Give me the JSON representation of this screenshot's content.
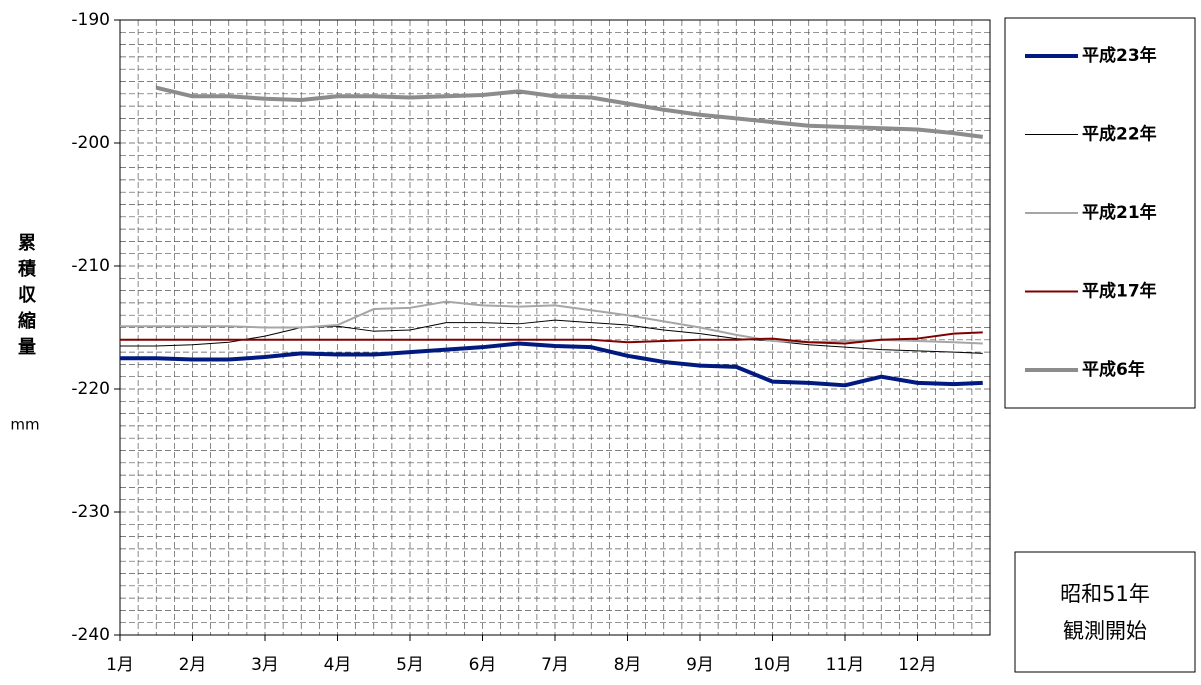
{
  "chart_data": {
    "type": "line",
    "y_label": "累積収縮量",
    "y_unit": "mm",
    "x": [
      1,
      1.5,
      2,
      2.5,
      3,
      3.5,
      4,
      4.5,
      5,
      5.5,
      6,
      6.5,
      7,
      7.5,
      8,
      8.5,
      9,
      9.5,
      10,
      10.5,
      11,
      11.5,
      12,
      12.5,
      12.9
    ],
    "xlim": [
      1,
      13
    ],
    "xticks": [
      {
        "value": 1,
        "label": "1月"
      },
      {
        "value": 2,
        "label": "2月"
      },
      {
        "value": 3,
        "label": "3月"
      },
      {
        "value": 4,
        "label": "4月"
      },
      {
        "value": 5,
        "label": "5月"
      },
      {
        "value": 6,
        "label": "6月"
      },
      {
        "value": 7,
        "label": "7月"
      },
      {
        "value": 8,
        "label": "8月"
      },
      {
        "value": 9,
        "label": "9月"
      },
      {
        "value": 10,
        "label": "10月"
      },
      {
        "value": 11,
        "label": "11月"
      },
      {
        "value": 12,
        "label": "12月"
      }
    ],
    "ylim": [
      -240,
      -190
    ],
    "yticks": [
      -240,
      -230,
      -220,
      -210,
      -200,
      -190
    ],
    "grid": true,
    "series": [
      {
        "name": "平成23年",
        "color": "#001a80",
        "width": 4,
        "values": [
          -217.5,
          -217.5,
          -217.6,
          -217.6,
          -217.4,
          -217.1,
          -217.2,
          -217.2,
          -217.0,
          -216.8,
          -216.6,
          -216.3,
          -216.5,
          -216.6,
          -217.3,
          -217.8,
          -218.1,
          -218.2,
          -219.4,
          -219.5,
          -219.7,
          -219.0,
          -219.5,
          -219.6,
          -219.5
        ]
      },
      {
        "name": "平成22年",
        "color": "#000000",
        "width": 1,
        "values": [
          -216.5,
          -216.5,
          -216.4,
          -216.2,
          -215.7,
          -215.0,
          -214.9,
          -215.3,
          -215.2,
          -214.6,
          -214.6,
          -214.7,
          -214.4,
          -214.6,
          -214.8,
          -215.2,
          -215.5,
          -215.9,
          -216.1,
          -216.4,
          -216.6,
          -216.8,
          -216.9,
          -217.0,
          -217.1
        ]
      },
      {
        "name": "平成21年",
        "color": "#a6a6a6",
        "width": 2,
        "values": [
          -214.9,
          -214.9,
          -214.9,
          -214.9,
          -215.0,
          -215.0,
          -214.8,
          -213.5,
          -213.4,
          -212.9,
          -213.2,
          -213.3,
          -213.2,
          -213.6,
          -214.0,
          -214.5,
          -215.0,
          -215.6,
          -216.1,
          -216.2,
          -216.1,
          -216.0,
          -216.1,
          -216.2,
          -216.3
        ]
      },
      {
        "name": "平成17年",
        "color": "#800000",
        "width": 2,
        "values": [
          -216.0,
          -216.0,
          -216.0,
          -216.0,
          -216.0,
          -216.0,
          -216.0,
          -216.0,
          -216.0,
          -216.0,
          -216.0,
          -216.0,
          -216.0,
          -216.0,
          -216.2,
          -216.1,
          -216.0,
          -216.0,
          -215.9,
          -216.2,
          -216.3,
          -216.0,
          -215.9,
          -215.5,
          -215.4
        ]
      },
      {
        "name": "平成6年",
        "color": "#8c8c8c",
        "width": 4,
        "values": [
          null,
          -195.5,
          -196.2,
          -196.2,
          -196.4,
          -196.5,
          -196.2,
          -196.2,
          -196.3,
          -196.2,
          -196.1,
          -195.8,
          -196.2,
          -196.3,
          -196.8,
          -197.3,
          -197.7,
          -198.0,
          -198.3,
          -198.6,
          -198.7,
          -198.8,
          -198.9,
          -199.2,
          -199.5
        ]
      }
    ],
    "annotation": [
      "昭和51年",
      "観測開始"
    ]
  }
}
